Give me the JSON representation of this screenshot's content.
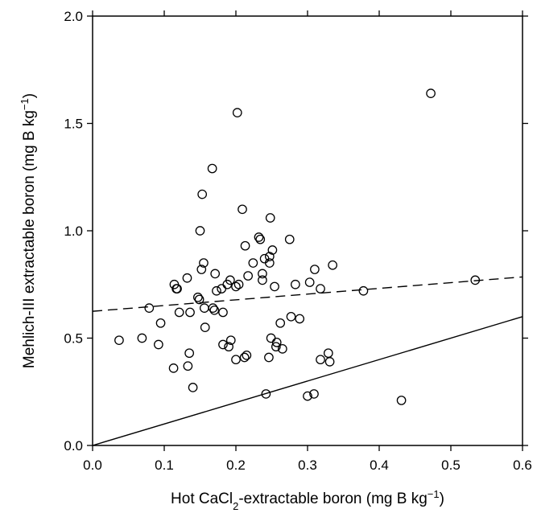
{
  "chart_data": {
    "type": "scatter",
    "xlabel": {
      "main": "Hot CaCl",
      "sub": "2",
      "rest": "-extractable boron (mg B kg",
      "sup": "−1",
      "end": ")"
    },
    "ylabel": {
      "main": "Mehlich-III extractable boron (mg B kg",
      "sup": "−1",
      "end": ")"
    },
    "xlim": [
      0.0,
      0.6
    ],
    "ylim": [
      0.0,
      2.0
    ],
    "x_ticks": [
      0.0,
      0.1,
      0.2,
      0.3,
      0.4,
      0.5,
      0.6
    ],
    "x_tick_labels": [
      "0.0",
      "0.1",
      "0.2",
      "0.3",
      "0.4",
      "0.5",
      "0.6"
    ],
    "y_ticks": [
      0.0,
      0.5,
      1.0,
      1.5,
      2.0
    ],
    "y_tick_labels": [
      "0.0",
      "0.5",
      "1.0",
      "1.5",
      "2.0"
    ],
    "grid": false,
    "points": [
      [
        0.037,
        0.49
      ],
      [
        0.069,
        0.5
      ],
      [
        0.079,
        0.64
      ],
      [
        0.092,
        0.47
      ],
      [
        0.095,
        0.57
      ],
      [
        0.113,
        0.36
      ],
      [
        0.114,
        0.75
      ],
      [
        0.117,
        0.73
      ],
      [
        0.118,
        0.73
      ],
      [
        0.121,
        0.62
      ],
      [
        0.132,
        0.78
      ],
      [
        0.133,
        0.37
      ],
      [
        0.135,
        0.43
      ],
      [
        0.136,
        0.62
      ],
      [
        0.14,
        0.27
      ],
      [
        0.147,
        0.69
      ],
      [
        0.149,
        0.68
      ],
      [
        0.15,
        1.0
      ],
      [
        0.152,
        0.82
      ],
      [
        0.153,
        1.17
      ],
      [
        0.155,
        0.85
      ],
      [
        0.156,
        0.64
      ],
      [
        0.157,
        0.55
      ],
      [
        0.167,
        1.29
      ],
      [
        0.168,
        0.64
      ],
      [
        0.17,
        0.63
      ],
      [
        0.171,
        0.8
      ],
      [
        0.173,
        0.72
      ],
      [
        0.18,
        0.73
      ],
      [
        0.182,
        0.62
      ],
      [
        0.182,
        0.47
      ],
      [
        0.188,
        0.75
      ],
      [
        0.19,
        0.46
      ],
      [
        0.192,
        0.77
      ],
      [
        0.193,
        0.49
      ],
      [
        0.2,
        0.74
      ],
      [
        0.2,
        0.4
      ],
      [
        0.202,
        1.55
      ],
      [
        0.204,
        0.75
      ],
      [
        0.209,
        1.1
      ],
      [
        0.212,
        0.41
      ],
      [
        0.213,
        0.93
      ],
      [
        0.215,
        0.42
      ],
      [
        0.217,
        0.79
      ],
      [
        0.224,
        0.85
      ],
      [
        0.232,
        0.97
      ],
      [
        0.234,
        0.96
      ],
      [
        0.237,
        0.77
      ],
      [
        0.237,
        0.8
      ],
      [
        0.24,
        0.87
      ],
      [
        0.242,
        0.24
      ],
      [
        0.246,
        0.41
      ],
      [
        0.247,
        0.88
      ],
      [
        0.247,
        0.85
      ],
      [
        0.248,
        1.06
      ],
      [
        0.249,
        0.5
      ],
      [
        0.251,
        0.91
      ],
      [
        0.254,
        0.74
      ],
      [
        0.256,
        0.46
      ],
      [
        0.257,
        0.48
      ],
      [
        0.262,
        0.57
      ],
      [
        0.265,
        0.45
      ],
      [
        0.275,
        0.96
      ],
      [
        0.277,
        0.6
      ],
      [
        0.283,
        0.75
      ],
      [
        0.289,
        0.59
      ],
      [
        0.3,
        0.23
      ],
      [
        0.303,
        0.76
      ],
      [
        0.309,
        0.24
      ],
      [
        0.31,
        0.82
      ],
      [
        0.318,
        0.73
      ],
      [
        0.318,
        0.4
      ],
      [
        0.329,
        0.43
      ],
      [
        0.331,
        0.39
      ],
      [
        0.335,
        0.84
      ],
      [
        0.378,
        0.72
      ],
      [
        0.431,
        0.21
      ],
      [
        0.472,
        1.64
      ],
      [
        0.534,
        0.77
      ]
    ],
    "lines": [
      {
        "style": "solid",
        "x": [
          0.0,
          0.6
        ],
        "y": [
          0.0,
          0.6
        ]
      },
      {
        "style": "dashed",
        "x": [
          0.0,
          0.6
        ],
        "y": [
          0.625,
          0.785
        ]
      }
    ]
  }
}
